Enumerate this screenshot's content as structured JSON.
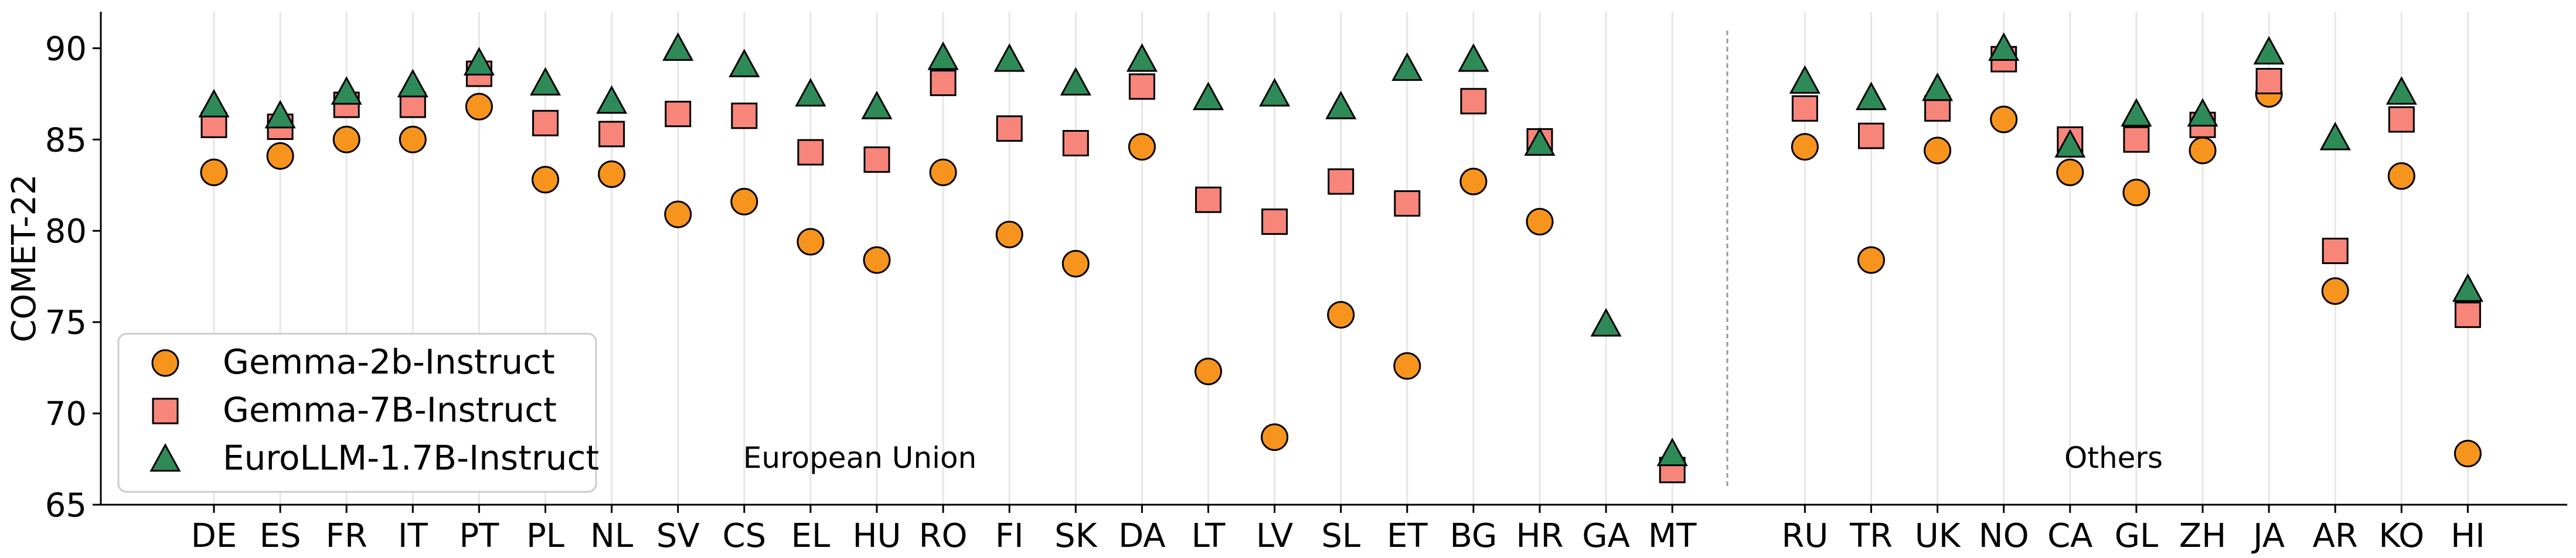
{
  "chart_data": {
    "type": "scatter",
    "ylabel": "COMET-22",
    "xlabel": "",
    "ylim": [
      65,
      92
    ],
    "yticks": [
      65,
      70,
      75,
      80,
      85,
      90
    ],
    "grid": "vertical lines at each category",
    "legend_position": "lower-left",
    "categories": [
      "DE",
      "ES",
      "FR",
      "IT",
      "PT",
      "PL",
      "NL",
      "SV",
      "CS",
      "EL",
      "HU",
      "RO",
      "FI",
      "SK",
      "DA",
      "LT",
      "LV",
      "SL",
      "ET",
      "BG",
      "HR",
      "GA",
      "MT",
      "RU",
      "TR",
      "UK",
      "NO",
      "CA",
      "GL",
      "ZH",
      "JA",
      "AR",
      "KO",
      "HI"
    ],
    "groups": [
      {
        "label": "European Union",
        "from": "DE",
        "to": "MT"
      },
      {
        "label": "Others",
        "from": "RU",
        "to": "HI"
      }
    ],
    "series": [
      {
        "name": "Gemma-2b-Instruct",
        "marker": "circle",
        "color": "#f7941d",
        "values": [
          83.2,
          84.1,
          85.0,
          85.0,
          86.8,
          82.8,
          83.1,
          80.9,
          81.6,
          79.4,
          78.4,
          83.2,
          79.8,
          78.2,
          84.6,
          72.3,
          68.7,
          75.4,
          72.6,
          82.7,
          80.5,
          null,
          null,
          84.6,
          78.4,
          84.4,
          86.1,
          83.2,
          82.1,
          84.4,
          87.5,
          76.7,
          83.0,
          67.8
        ]
      },
      {
        "name": "Gemma-7B-Instruct",
        "marker": "square",
        "color": "#f8857a",
        "values": [
          85.8,
          85.7,
          86.9,
          86.9,
          88.6,
          85.9,
          85.3,
          86.4,
          86.3,
          84.3,
          83.9,
          88.1,
          85.6,
          84.8,
          87.9,
          81.7,
          80.5,
          82.7,
          81.5,
          87.1,
          84.9,
          null,
          66.9,
          86.7,
          85.2,
          86.7,
          89.4,
          85.0,
          85.0,
          85.8,
          88.2,
          78.9,
          86.1,
          75.4
        ]
      },
      {
        "name": "EuroLLM-1.7B-Instruct",
        "marker": "triangle",
        "color": "#2e8b57",
        "values": [
          86.9,
          86.3,
          87.6,
          88.0,
          89.2,
          88.1,
          87.1,
          90.0,
          89.1,
          87.5,
          86.8,
          89.5,
          89.4,
          88.1,
          89.4,
          87.3,
          87.5,
          86.8,
          88.9,
          89.4,
          84.8,
          74.9,
          67.8,
          88.2,
          87.3,
          87.8,
          90.0,
          84.7,
          86.4,
          86.4,
          89.8,
          85.1,
          87.6,
          76.8
        ]
      }
    ]
  }
}
